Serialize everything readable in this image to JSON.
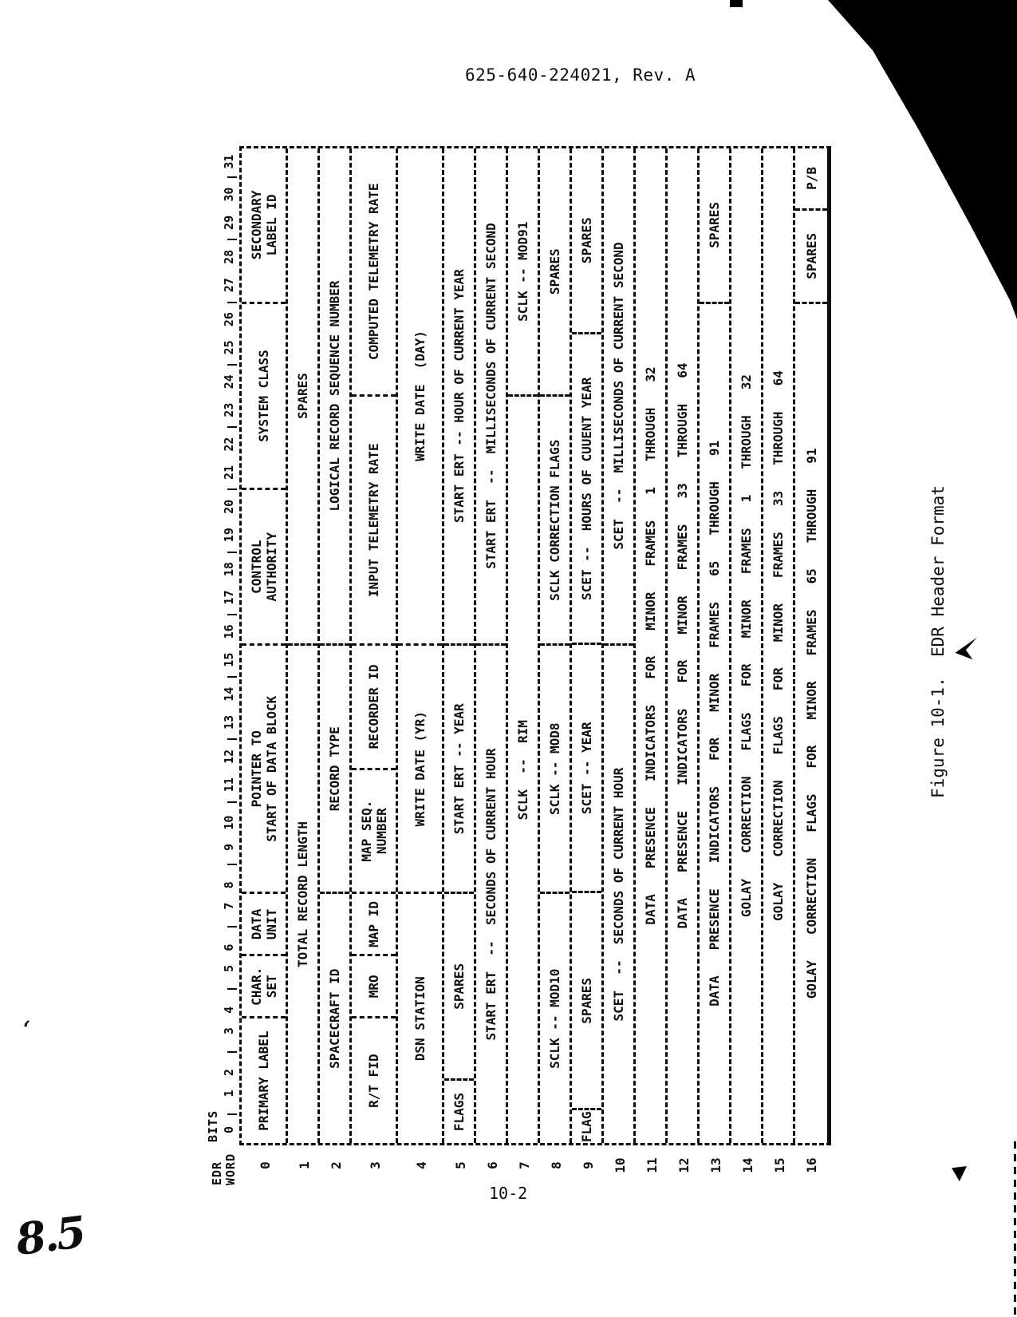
{
  "doc_header": "625-640-224021, Rev. A",
  "caption": "Figure 10-1.  EDR Header Format",
  "page_number": "10-2",
  "handwritten_note": "8.5",
  "table": {
    "corner_label_line1": "EDR",
    "corner_label_line2": "WORD",
    "bits_label": "BITS",
    "bit_groups": [
      "0",
      "1 2",
      "3 4",
      "5 6",
      "7 8",
      "9 10",
      "11 12",
      "13 14",
      "15 16",
      "17 18",
      "19 20",
      "21 22",
      "23 24",
      "25 26",
      "27 28",
      "29 30",
      "31"
    ],
    "rows": [
      {
        "word": "0",
        "lines": 2,
        "cells": [
          {
            "text": "PRIMARY LABEL",
            "span": 4
          },
          {
            "text": "CHAR.\nSET",
            "span": 2
          },
          {
            "text": "DATA\nUNIT",
            "span": 2
          },
          {
            "text": "POINTER TO\nSTART OF DATA BLOCK",
            "span": 8
          },
          {
            "text": "CONTROL\nAUTHORITY",
            "span": 5
          },
          {
            "text": "SYSTEM CLASS",
            "span": 6
          },
          {
            "text": "SECONDARY\nLABEL ID",
            "span": 5
          }
        ]
      },
      {
        "word": "1",
        "cells": [
          {
            "text": "TOTAL RECORD LENGTH",
            "span": 16
          },
          {
            "text": "SPARES",
            "span": 16
          }
        ]
      },
      {
        "word": "2",
        "cells": [
          {
            "text": "SPACECRAFT ID",
            "span": 8
          },
          {
            "text": "RECORD TYPE",
            "span": 8
          },
          {
            "text": "LOGICAL RECORD SEQUENCE NUMBER",
            "span": 16
          }
        ]
      },
      {
        "word": "3",
        "lines": 2,
        "cells": [
          {
            "text": "R/T FID",
            "span": 4
          },
          {
            "text": "MRO",
            "span": 2
          },
          {
            "text": "MAP ID",
            "span": 2
          },
          {
            "text": "MAP SEQ.\nNUMBER",
            "span": 4
          },
          {
            "text": "RECORDER ID",
            "span": 4
          },
          {
            "text": "INPUT TELEMETRY RATE",
            "span": 8
          },
          {
            "text": "COMPUTED TELEMETRY RATE",
            "span": 8
          }
        ]
      },
      {
        "word": "4",
        "lines": 2,
        "cells": [
          {
            "text": "DSN STATION",
            "span": 8
          },
          {
            "text": "WRITE DATE (YR)",
            "span": 8
          },
          {
            "text": "WRITE DATE  (DAY)",
            "span": 16
          }
        ]
      },
      {
        "word": "5",
        "cells": [
          {
            "text": "FLAGS",
            "span": 2
          },
          {
            "text": "SPARES",
            "span": 6
          },
          {
            "text": "START ERT -- YEAR",
            "span": 8
          },
          {
            "text": "START ERT -- HOUR OF CURRENT YEAR",
            "span": 16
          }
        ]
      },
      {
        "word": "6",
        "cells": [
          {
            "text": "START ERT  --  SECONDS OF CURRENT HOUR",
            "span": 16
          },
          {
            "text": "START ERT  --  MILLISECONDS OF CURRENT SECOND",
            "span": 16
          }
        ]
      },
      {
        "word": "7",
        "cells": [
          {
            "text": "SCLK  --  RIM",
            "span": 24
          },
          {
            "text": "SCLK -- MOD91",
            "span": 8
          }
        ]
      },
      {
        "word": "8",
        "cells": [
          {
            "text": "SCLK -- MOD10",
            "span": 8
          },
          {
            "text": "SCLK -- MOD8",
            "span": 8
          },
          {
            "text": "SCLK CORRECTION FLAGS",
            "span": 8
          },
          {
            "text": "SPARES",
            "span": 8
          }
        ]
      },
      {
        "word": "9",
        "cells": [
          {
            "text": "FLAG",
            "span": 1
          },
          {
            "text": "SPARES",
            "span": 7
          },
          {
            "text": "SCET -- YEAR",
            "span": 8
          },
          {
            "text": "SCET --  HOURS OF CUUENT YEAR",
            "span": 10
          },
          {
            "text": "SPARES",
            "span": 6
          }
        ]
      },
      {
        "word": "10",
        "cells": [
          {
            "text": "SCET  --  SECONDS OF CURRENT HOUR",
            "span": 16
          },
          {
            "text": "SCET  --  MILLISECONDS OF CURRENT SECOND",
            "span": 16
          }
        ]
      },
      {
        "word": "11",
        "wide": true,
        "cells": [
          {
            "text": "DATA PRESENCE INDICATORS FOR MINOR FRAMES 1 THROUGH 32",
            "span": 32
          }
        ]
      },
      {
        "word": "12",
        "wide": true,
        "cells": [
          {
            "text": "DATA PRESENCE INDICATORS FOR MINOR FRAMES 33 THROUGH 64",
            "span": 32
          }
        ]
      },
      {
        "word": "13",
        "wide": true,
        "cells": [
          {
            "text": "DATA PRESENCE INDICATORS FOR MINOR FRAMES 65 THROUGH 91",
            "span": 27
          },
          {
            "text": "SPARES",
            "span": 5
          }
        ]
      },
      {
        "word": "14",
        "wide": true,
        "cells": [
          {
            "text": "GOLAY CORRECTION FLAGS FOR MINOR FRAMES 1 THROUGH 32",
            "span": 32
          }
        ]
      },
      {
        "word": "15",
        "wide": true,
        "cells": [
          {
            "text": "GOLAY CORRECTION FLAGS FOR MINOR FRAMES 33 THROUGH 64",
            "span": 32
          }
        ]
      },
      {
        "word": "16",
        "wide": true,
        "cells": [
          {
            "text": "GOLAY CORRECTION FLAGS FOR MINOR FRAMES 65 THROUGH 91",
            "span": 27
          },
          {
            "text": "SPARES",
            "span": 3
          },
          {
            "text": "P/B",
            "span": 2
          }
        ]
      }
    ]
  }
}
